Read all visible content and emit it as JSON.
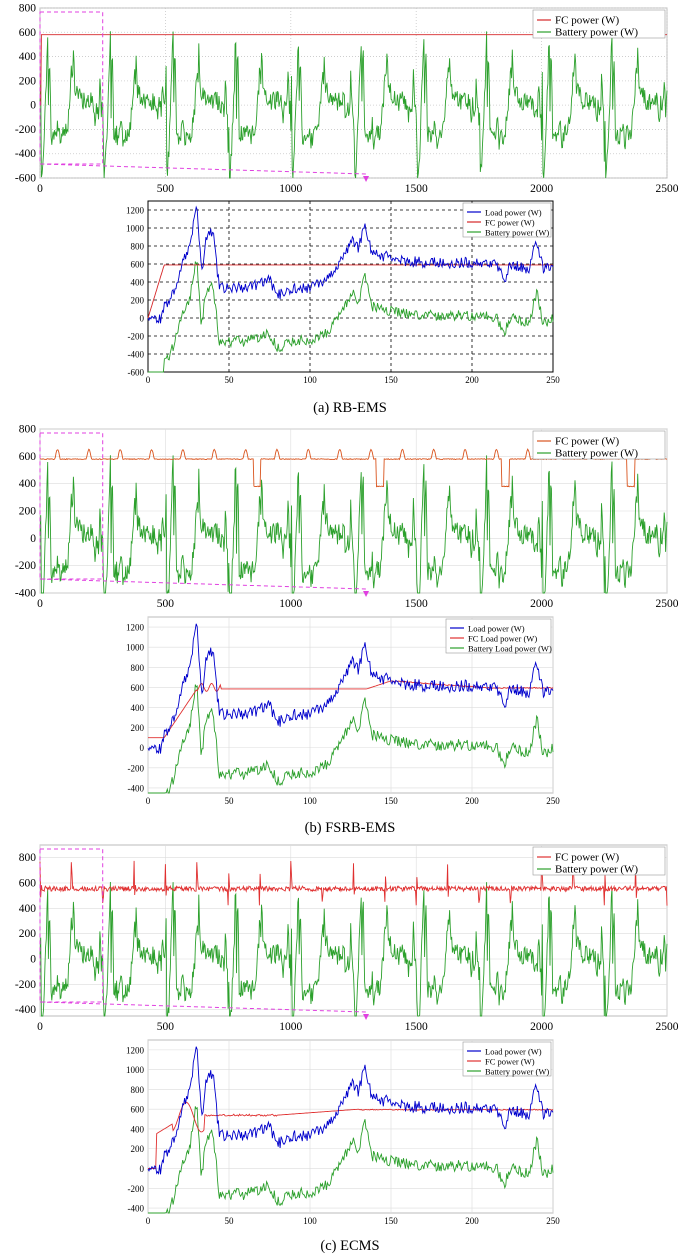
{
  "figure": {
    "captions": [
      "(a) RB-EMS",
      "(b) FSRB-EMS",
      "(c) ECMS"
    ]
  },
  "chart_data": [
    {
      "type": "line",
      "panel": "a-overview",
      "xlim": [
        0,
        2500
      ],
      "ylim": [
        -600,
        800
      ],
      "xticks": [
        0,
        500,
        1000,
        1500,
        2000,
        2500
      ],
      "yticks": [
        -600,
        -400,
        -200,
        0,
        200,
        400,
        600,
        800
      ],
      "grid": "dotted",
      "legend_position": "top-right",
      "zoom_window": {
        "x": [
          0,
          250
        ]
      },
      "series": [
        {
          "name": "FC power (W)",
          "color": "#d62728",
          "kind": "fc_const",
          "level": 580
        },
        {
          "name": "Battery power (W)",
          "color": "#2ca02c",
          "kind": "battery"
        }
      ]
    },
    {
      "type": "line",
      "panel": "a-zoom",
      "xlim": [
        0,
        250
      ],
      "ylim": [
        -600,
        1300
      ],
      "xticks": [
        0,
        50,
        100,
        150,
        200,
        250
      ],
      "yticks": [
        -600,
        -400,
        -200,
        0,
        200,
        400,
        600,
        800,
        1000,
        1200
      ],
      "grid": "dashed-black",
      "legend_position": "top-right",
      "series": [
        {
          "name": "Load power (W)",
          "color": "#0000cc",
          "kind": "load"
        },
        {
          "name": "FC power (W)",
          "color": "#d62728",
          "kind": "fc_ramp",
          "level": 590
        },
        {
          "name": "Battery power (W)",
          "color": "#2ca02c",
          "kind": "battery_zoom"
        }
      ]
    },
    {
      "type": "line",
      "panel": "b-overview",
      "xlim": [
        0,
        2500
      ],
      "ylim": [
        -400,
        800
      ],
      "xticks": [
        0,
        500,
        1000,
        1500,
        2000,
        2500
      ],
      "yticks": [
        -400,
        -200,
        0,
        200,
        400,
        600,
        800
      ],
      "grid": "light",
      "legend_position": "top-right",
      "zoom_window": {
        "x": [
          0,
          250
        ]
      },
      "series": [
        {
          "name": "FC power (W)",
          "color": "#d9541e",
          "kind": "fc_bumps",
          "level": 580
        },
        {
          "name": "Battery power (W)",
          "color": "#2ca02c",
          "kind": "battery"
        }
      ]
    },
    {
      "type": "line",
      "panel": "b-zoom",
      "xlim": [
        0,
        250
      ],
      "ylim": [
        -450,
        1300
      ],
      "xticks": [
        0,
        50,
        100,
        150,
        200,
        250
      ],
      "yticks": [
        -400,
        -200,
        0,
        200,
        400,
        600,
        800,
        1000,
        1200
      ],
      "grid": "light",
      "legend_position": "top-right",
      "series": [
        {
          "name": "Load power (W)",
          "color": "#0000cc",
          "kind": "load"
        },
        {
          "name": "FC Load power (W)",
          "color": "#e03030",
          "kind": "fc_fsrb",
          "level": 590
        },
        {
          "name": "Battery Load power (W)",
          "color": "#2ca02c",
          "kind": "battery_zoom"
        }
      ]
    },
    {
      "type": "line",
      "panel": "c-overview",
      "xlim": [
        0,
        2500
      ],
      "ylim": [
        -450,
        900
      ],
      "xticks": [
        0,
        500,
        1000,
        1500,
        2000,
        2500
      ],
      "yticks": [
        -400,
        -200,
        0,
        200,
        400,
        600,
        800
      ],
      "grid": "light",
      "legend_position": "top-right",
      "zoom_window": {
        "x": [
          0,
          250
        ]
      },
      "series": [
        {
          "name": "FC power (W)",
          "color": "#e03030",
          "kind": "fc_spiky",
          "level": 575
        },
        {
          "name": "Battery power (W)",
          "color": "#2ca02c",
          "kind": "battery"
        }
      ]
    },
    {
      "type": "line",
      "panel": "c-zoom",
      "xlim": [
        0,
        250
      ],
      "ylim": [
        -450,
        1300
      ],
      "xticks": [
        0,
        50,
        100,
        150,
        200,
        250
      ],
      "yticks": [
        -400,
        -200,
        0,
        200,
        400,
        600,
        800,
        1000,
        1200
      ],
      "grid": "light",
      "legend_position": "top-right",
      "series": [
        {
          "name": "Load power (W)",
          "color": "#0000cc",
          "kind": "load"
        },
        {
          "name": "FC power (W)",
          "color": "#e03030",
          "kind": "fc_ecms",
          "level": 560
        },
        {
          "name": "Battery power (W)",
          "color": "#2ca02c",
          "kind": "battery_zoom"
        }
      ]
    }
  ]
}
